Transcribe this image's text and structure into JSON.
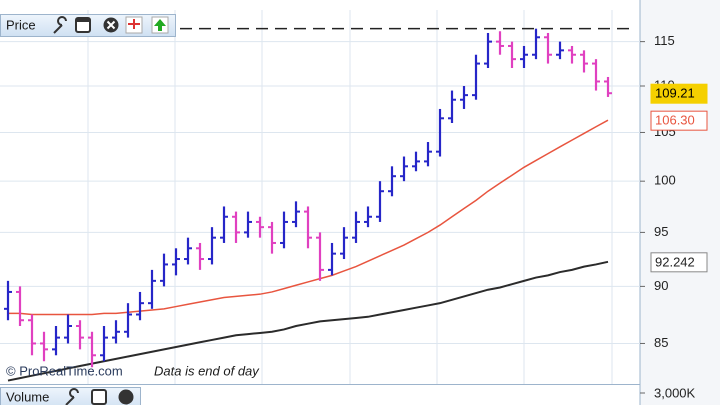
{
  "chart_data": {
    "type": "ohlc",
    "title": "Price",
    "watermark": "© ProRealTime.com",
    "note": "Data is end of day",
    "log_scale": true,
    "grid": true,
    "ylim": [
      81.7,
      118.7
    ],
    "yticks": [
      85,
      90,
      95,
      100,
      105,
      110,
      115
    ],
    "up_color": "#2626c8",
    "down_color": "#e040c0",
    "high_line": 116.5,
    "open": [
      88,
      89.5,
      87,
      85,
      84.5,
      85.5,
      86.5,
      85.5,
      84,
      85.5,
      86,
      87.5,
      88.5,
      90.5,
      92,
      92.5,
      93.5,
      92.5,
      94.5,
      96.5,
      95,
      96,
      95.5,
      94,
      96,
      97,
      94.5,
      91.5,
      93,
      94.5,
      96,
      96.5,
      99,
      100.5,
      101.5,
      102,
      103,
      106.5,
      108.5,
      109,
      112.5,
      115,
      114.5,
      113,
      113.5,
      115.5,
      113.5,
      114,
      113.5,
      112.5,
      110.5
    ],
    "high": [
      90.5,
      90,
      87.5,
      86,
      86.5,
      87.5,
      87,
      86,
      86.5,
      87,
      88.5,
      89.5,
      91.5,
      93,
      93.5,
      94.5,
      94,
      95.5,
      97.5,
      97,
      97,
      96.5,
      96,
      97,
      98,
      97.5,
      95,
      94,
      95.5,
      97,
      97.5,
      100,
      101.5,
      102.5,
      103,
      104,
      107.5,
      109.5,
      110,
      113.5,
      116,
      116.2,
      115,
      114.5,
      116.5,
      116,
      115,
      114.5,
      114,
      113,
      111
    ],
    "low": [
      87,
      86.5,
      84,
      83.5,
      84,
      85,
      84.5,
      83,
      83.5,
      85,
      85.5,
      87,
      88,
      90,
      91,
      92,
      91.5,
      92,
      94,
      94,
      94.5,
      94.5,
      93,
      93.5,
      95.5,
      93.5,
      90.5,
      91,
      92.5,
      94,
      95.5,
      96,
      98.5,
      100,
      101,
      101.5,
      102.5,
      106,
      107.5,
      108.5,
      112,
      113.5,
      112,
      112,
      113,
      112.5,
      113,
      112.5,
      111.5,
      109.5,
      108.8
    ],
    "close": [
      89.5,
      87,
      85,
      84.5,
      85.5,
      86.5,
      85.5,
      84,
      85.5,
      86,
      87.5,
      88.5,
      90.5,
      92,
      92.5,
      93.5,
      92.5,
      94.5,
      96.5,
      95,
      96,
      95.5,
      94,
      96,
      97,
      94.5,
      91.5,
      93,
      94.5,
      96,
      96.5,
      99,
      100.5,
      101.5,
      102,
      103,
      106.5,
      108.5,
      109,
      112.5,
      115,
      114.5,
      113,
      113.5,
      115.5,
      113.5,
      114,
      113.5,
      112.5,
      110.5,
      109.21
    ],
    "series": [
      {
        "color": "#e8553f",
        "values": [
          87.6,
          87.6,
          87.5,
          87.5,
          87.5,
          87.5,
          87.5,
          87.5,
          87.6,
          87.6,
          87.7,
          87.8,
          87.9,
          88.0,
          88.2,
          88.4,
          88.6,
          88.8,
          89.0,
          89.1,
          89.2,
          89.3,
          89.5,
          89.8,
          90.1,
          90.4,
          90.7,
          91.0,
          91.4,
          91.8,
          92.3,
          92.8,
          93.3,
          93.8,
          94.4,
          95.0,
          95.7,
          96.5,
          97.3,
          98.1,
          99.0,
          99.8,
          100.6,
          101.4,
          102.1,
          102.8,
          103.5,
          104.2,
          104.9,
          105.6,
          106.3
        ]
      },
      {
        "color": "#2b2b2b",
        "values": [
          81.9,
          82.1,
          82.3,
          82.5,
          82.7,
          82.9,
          83.1,
          83.3,
          83.5,
          83.7,
          83.9,
          84.1,
          84.3,
          84.5,
          84.7,
          84.9,
          85.1,
          85.3,
          85.5,
          85.7,
          85.8,
          85.9,
          86.0,
          86.2,
          86.5,
          86.7,
          86.9,
          87.0,
          87.1,
          87.2,
          87.3,
          87.5,
          87.7,
          87.9,
          88.1,
          88.3,
          88.5,
          88.8,
          89.1,
          89.4,
          89.7,
          89.9,
          90.2,
          90.5,
          90.8,
          91.0,
          91.3,
          91.5,
          91.8,
          92.0,
          92.242
        ]
      }
    ],
    "price_badges": [
      {
        "value": 109.21,
        "label": "109.21",
        "color": "#f5d000"
      },
      {
        "value": 106.3,
        "label": "106.30",
        "color": "#e8553f"
      },
      {
        "value": 92.242,
        "label": "92.242",
        "color": "#888888"
      }
    ],
    "volume_pane": {
      "title": "Volume",
      "yticks": [
        {
          "value": 3000000,
          "label": "3,000K"
        }
      ]
    }
  }
}
